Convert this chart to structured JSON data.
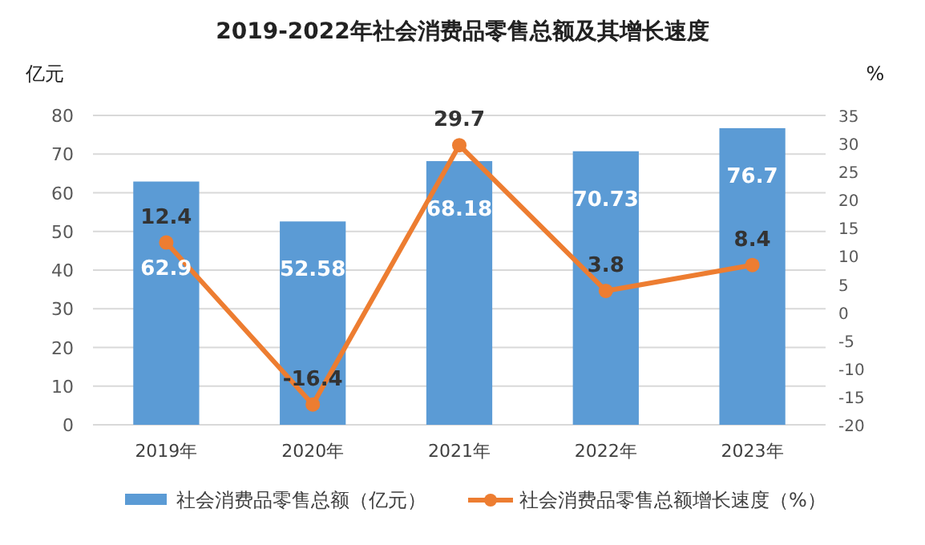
{
  "chart_data": {
    "type": "bar",
    "title": "2019-2022年社会消费品零售总额及其增长速度",
    "categories": [
      "2019年",
      "2020年",
      "2021年",
      "2022年",
      "2023年"
    ],
    "series": [
      {
        "name": "社会消费品零售总额（亿元）",
        "color": "#5b9bd5",
        "values": [
          62.9,
          52.58,
          68.18,
          70.73,
          76.7
        ]
      },
      {
        "name": "社会消费品零售总额增长速度（%）",
        "type": "line",
        "axis": "y2",
        "color": "#ed7d31",
        "values": [
          12.4,
          -16.4,
          29.7,
          3.8,
          8.4
        ]
      }
    ],
    "ylabel": "亿元",
    "y2label": "%",
    "ylim": [
      0,
      80
    ],
    "yticks": [
      0,
      10,
      20,
      30,
      40,
      50,
      60,
      70,
      80
    ],
    "y2lim": [
      -20,
      35
    ],
    "y2ticks": [
      -20,
      -15,
      -10,
      -5,
      0,
      5,
      10,
      15,
      20,
      25,
      30,
      35
    ],
    "grid": "y",
    "legend": "bottom",
    "marker": "circle",
    "line_style": "solid",
    "data_labels": true
  }
}
